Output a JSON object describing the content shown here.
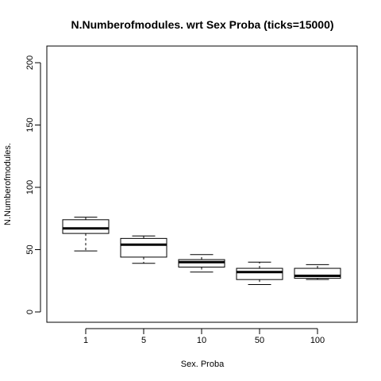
{
  "chart_data": {
    "type": "box",
    "title": "N.Numberofmodules. wrt Sex Proba (ticks=15000)",
    "xlabel": "Sex. Proba",
    "ylabel": "N.Numberofmodules.",
    "ylim": [
      0,
      200
    ],
    "yticks": [
      0,
      50,
      100,
      150,
      200
    ],
    "categories": [
      "1",
      "5",
      "10",
      "50",
      "100"
    ],
    "boxes": [
      {
        "category": "1",
        "min": 49,
        "q1": 63,
        "median": 67,
        "q3": 74,
        "max": 76
      },
      {
        "category": "5",
        "min": 39,
        "q1": 44,
        "median": 54,
        "q3": 59,
        "max": 61
      },
      {
        "category": "10",
        "min": 32,
        "q1": 36,
        "median": 40,
        "q3": 42,
        "max": 46
      },
      {
        "category": "50",
        "min": 22,
        "q1": 26,
        "median": 32,
        "q3": 35,
        "max": 40
      },
      {
        "category": "100",
        "min": 26,
        "q1": 27,
        "median": 29,
        "q3": 35,
        "max": 38
      }
    ],
    "grid": false
  }
}
